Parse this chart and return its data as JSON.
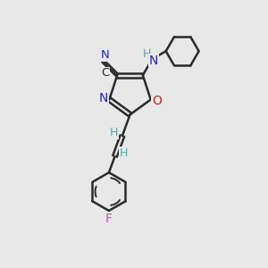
{
  "bg_color": "#e8e8e8",
  "bond_color": "#2a2a2a",
  "N_color": "#2222cc",
  "O_color": "#cc2222",
  "F_color": "#cc44cc",
  "H_color": "#44aaaa",
  "figsize": [
    3.0,
    3.0
  ],
  "dpi": 100,
  "xlim": [
    0,
    10
  ],
  "ylim": [
    0,
    10
  ]
}
